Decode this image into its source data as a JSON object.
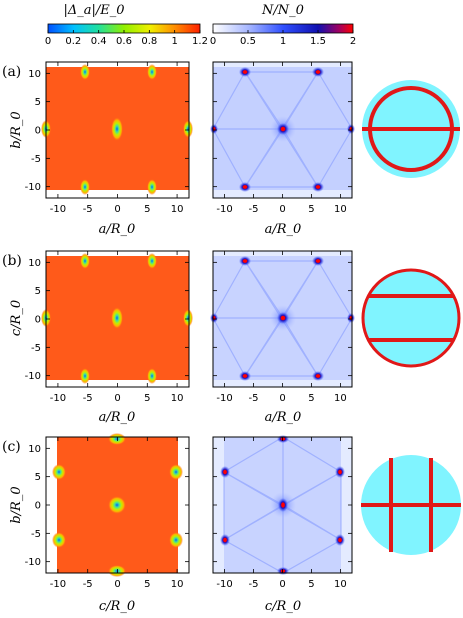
{
  "figure": {
    "colorbars": [
      {
        "title": "|Δ_a|/E_0",
        "ticks": [
          "0",
          "0.2",
          "0.4",
          "0.6",
          "0.8",
          "1",
          "1.2"
        ],
        "colors": [
          "#0050ff",
          "#00c0ff",
          "#20e0a0",
          "#90f000",
          "#f0f000",
          "#ff9000",
          "#ff2000"
        ]
      },
      {
        "title": "N/N_0",
        "ticks": [
          "0",
          "0.5",
          "1",
          "1.5",
          "2"
        ],
        "colors": [
          "#ffffff",
          "#a8b8ff",
          "#3050ff",
          "#1010b0",
          "#ff0000"
        ]
      }
    ],
    "panels": [
      {
        "label": "(a)",
        "ylabel": "b/R_0",
        "xlabel": "a/R_0",
        "xticks": [
          "-10",
          "-5",
          "0",
          "5",
          "10"
        ],
        "yticks": [
          "10",
          "5",
          "0",
          "-5",
          "-10"
        ]
      },
      {
        "label": "(b)",
        "ylabel": "c/R_0",
        "xlabel": "a/R_0",
        "xticks": [
          "-10",
          "-5",
          "0",
          "5",
          "10"
        ],
        "yticks": [
          "10",
          "5",
          "0",
          "-5",
          "-10"
        ]
      },
      {
        "label": "(c)",
        "ylabel": "b/R_0",
        "xlabel": "c/R_0",
        "xticks": [
          "-10",
          "-5",
          "0",
          "5",
          "10"
        ],
        "yticks": [
          "10",
          "5",
          "0",
          "-5",
          "-10"
        ]
      }
    ],
    "colors": {
      "gap_map": "#ff5a1a",
      "dos_map": "#dfe6ff",
      "sphere": "#80f4ff",
      "line": "#e01818"
    }
  },
  "chart_data": [
    {
      "type": "heatmap",
      "title": "|Δ_a|/E_0",
      "xlabel": "a/R_0",
      "ylabel": "b/R_0",
      "xlim": [
        -12,
        12
      ],
      "ylim": [
        -12,
        12
      ],
      "clim": [
        0,
        1.2
      ],
      "minima": [
        {
          "x": 0,
          "y": 0
        },
        {
          "x": -5.8,
          "y": 10
        },
        {
          "x": 5.8,
          "y": 10
        },
        {
          "x": -5.8,
          "y": -10
        },
        {
          "x": 5.8,
          "y": -10
        },
        {
          "x": -11.6,
          "y": 0
        },
        {
          "x": 11.6,
          "y": 0
        }
      ]
    },
    {
      "type": "heatmap",
      "title": "N/N_0",
      "xlabel": "a/R_0",
      "ylabel": "b/R_0",
      "xlim": [
        -12,
        12
      ],
      "ylim": [
        -12,
        12
      ],
      "clim": [
        0,
        2
      ],
      "maxima": [
        {
          "x": 0,
          "y": 0
        },
        {
          "x": -5.8,
          "y": 10
        },
        {
          "x": 5.8,
          "y": 10
        },
        {
          "x": -5.8,
          "y": -10
        },
        {
          "x": 5.8,
          "y": -10
        },
        {
          "x": -11.6,
          "y": 0
        },
        {
          "x": 11.6,
          "y": 0
        }
      ]
    },
    {
      "type": "heatmap",
      "title": "|Δ_a|/E_0",
      "xlabel": "a/R_0",
      "ylabel": "c/R_0",
      "xlim": [
        -12,
        12
      ],
      "ylim": [
        -12,
        12
      ],
      "clim": [
        0,
        1.2
      ],
      "minima": [
        {
          "x": 0,
          "y": 0
        },
        {
          "x": -5.8,
          "y": 10
        },
        {
          "x": 5.8,
          "y": 10
        },
        {
          "x": -5.8,
          "y": -10
        },
        {
          "x": 5.8,
          "y": -10
        },
        {
          "x": -11.6,
          "y": 0
        },
        {
          "x": 11.6,
          "y": 0
        }
      ]
    },
    {
      "type": "heatmap",
      "title": "N/N_0",
      "xlabel": "a/R_0",
      "ylabel": "c/R_0",
      "xlim": [
        -12,
        12
      ],
      "ylim": [
        -12,
        12
      ],
      "clim": [
        0,
        2
      ],
      "maxima": [
        {
          "x": 0,
          "y": 0
        },
        {
          "x": -5.8,
          "y": 10
        },
        {
          "x": 5.8,
          "y": 10
        },
        {
          "x": -5.8,
          "y": -10
        },
        {
          "x": 5.8,
          "y": -10
        },
        {
          "x": -11.6,
          "y": 0
        },
        {
          "x": 11.6,
          "y": 0
        }
      ]
    },
    {
      "type": "heatmap",
      "title": "|Δ_a|/E_0",
      "xlabel": "c/R_0",
      "ylabel": "b/R_0",
      "xlim": [
        -12,
        12
      ],
      "ylim": [
        -12,
        12
      ],
      "clim": [
        0,
        1.2
      ],
      "minima": [
        {
          "x": 0,
          "y": 0
        },
        {
          "x": 0,
          "y": 11.6
        },
        {
          "x": 0,
          "y": -11.6
        },
        {
          "x": -10,
          "y": 5.8
        },
        {
          "x": 10,
          "y": 5.8
        },
        {
          "x": -10,
          "y": -5.8
        },
        {
          "x": 10,
          "y": -5.8
        }
      ]
    },
    {
      "type": "heatmap",
      "title": "N/N_0",
      "xlabel": "c/R_0",
      "ylabel": "b/R_0",
      "xlim": [
        -12,
        12
      ],
      "ylim": [
        -12,
        12
      ],
      "clim": [
        0,
        2
      ],
      "maxima": [
        {
          "x": 0,
          "y": 0
        },
        {
          "x": 0,
          "y": 11.6
        },
        {
          "x": 0,
          "y": -11.6
        },
        {
          "x": -10,
          "y": 5.8
        },
        {
          "x": 10,
          "y": 5.8
        },
        {
          "x": -10,
          "y": -5.8
        },
        {
          "x": 10,
          "y": -5.8
        }
      ]
    }
  ]
}
